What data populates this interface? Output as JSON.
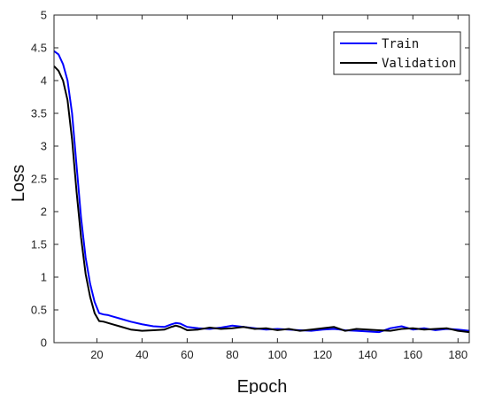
{
  "chart_data": {
    "type": "line",
    "title": "",
    "xlabel": "Epoch",
    "ylabel": "Loss",
    "xlim": [
      1,
      185
    ],
    "ylim": [
      0,
      5
    ],
    "xticks": [
      20,
      40,
      60,
      80,
      100,
      120,
      140,
      160,
      180
    ],
    "yticks": [
      0,
      0.5,
      1,
      1.5,
      2,
      2.5,
      3,
      3.5,
      4,
      4.5,
      5
    ],
    "ytick_labels": [
      "0",
      "0.5",
      "1",
      "1.5",
      "2",
      "2.5",
      "3",
      "3.5",
      "4",
      "4.5",
      "5"
    ],
    "grid": false,
    "legend_position": "top-right",
    "series": [
      {
        "name": "Train",
        "color": "#0000ff",
        "x": [
          1,
          3,
          5,
          7,
          9,
          11,
          13,
          15,
          17,
          19,
          21,
          23,
          25,
          27,
          30,
          35,
          40,
          45,
          50,
          53,
          55,
          57,
          60,
          65,
          70,
          75,
          80,
          85,
          90,
          95,
          100,
          105,
          110,
          115,
          120,
          125,
          130,
          135,
          140,
          145,
          150,
          155,
          160,
          165,
          170,
          175,
          180,
          185
        ],
        "values": [
          4.45,
          4.4,
          4.25,
          4.0,
          3.5,
          2.7,
          1.9,
          1.3,
          0.9,
          0.62,
          0.45,
          0.43,
          0.42,
          0.4,
          0.37,
          0.32,
          0.28,
          0.25,
          0.24,
          0.28,
          0.3,
          0.29,
          0.24,
          0.22,
          0.21,
          0.23,
          0.26,
          0.24,
          0.22,
          0.2,
          0.21,
          0.2,
          0.19,
          0.18,
          0.2,
          0.21,
          0.19,
          0.18,
          0.17,
          0.16,
          0.22,
          0.25,
          0.2,
          0.22,
          0.19,
          0.21,
          0.2,
          0.18
        ]
      },
      {
        "name": "Validation",
        "color": "#000000",
        "x": [
          1,
          3,
          5,
          7,
          9,
          11,
          13,
          15,
          17,
          19,
          21,
          23,
          25,
          27,
          30,
          35,
          40,
          45,
          50,
          53,
          55,
          57,
          60,
          65,
          70,
          75,
          80,
          85,
          90,
          95,
          100,
          105,
          110,
          115,
          120,
          125,
          130,
          135,
          140,
          145,
          150,
          155,
          160,
          165,
          170,
          175,
          180,
          185
        ],
        "values": [
          4.22,
          4.15,
          4.0,
          3.7,
          3.1,
          2.3,
          1.6,
          1.05,
          0.7,
          0.45,
          0.33,
          0.32,
          0.3,
          0.28,
          0.25,
          0.2,
          0.18,
          0.19,
          0.2,
          0.24,
          0.26,
          0.24,
          0.19,
          0.2,
          0.23,
          0.21,
          0.22,
          0.24,
          0.21,
          0.22,
          0.19,
          0.21,
          0.18,
          0.2,
          0.22,
          0.24,
          0.18,
          0.21,
          0.2,
          0.19,
          0.18,
          0.21,
          0.22,
          0.2,
          0.21,
          0.22,
          0.18,
          0.16
        ]
      }
    ]
  }
}
